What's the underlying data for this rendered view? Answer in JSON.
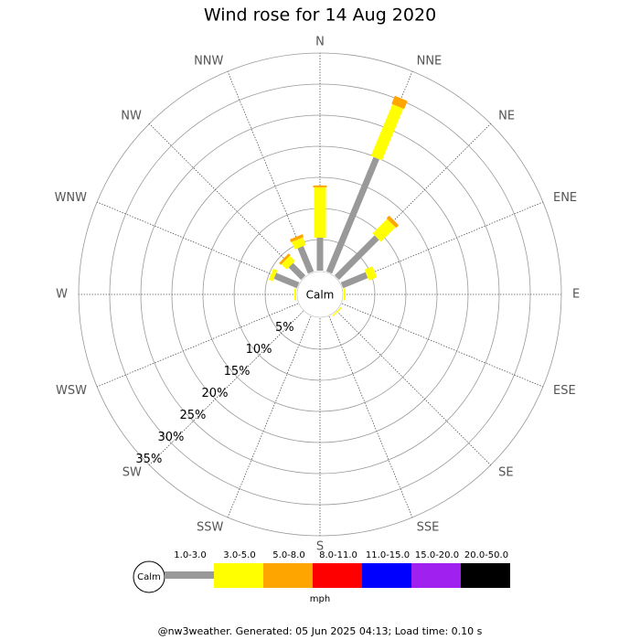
{
  "chart_data": {
    "type": "wind-rose",
    "title": "Wind rose for 14 Aug 2020",
    "calm_label": "Calm",
    "unit_label": "mph",
    "footer": "@nw3weather. Generated: 05 Jun 2025 04:13; Load time: 0.10 s",
    "categories": [
      "N",
      "NNE",
      "NE",
      "ENE",
      "E",
      "ESE",
      "SE",
      "SSE",
      "S",
      "SSW",
      "SW",
      "WSW",
      "W",
      "WNW",
      "NW",
      "NNW"
    ],
    "rlim": [
      0,
      35
    ],
    "rticks": [
      {
        "value": 5,
        "label": "5%"
      },
      {
        "value": 10,
        "label": "10%"
      },
      {
        "value": 15,
        "label": "15%"
      },
      {
        "value": 20,
        "label": "20%"
      },
      {
        "value": 25,
        "label": "25%"
      },
      {
        "value": 30,
        "label": "30%"
      },
      {
        "value": 35,
        "label": "35%"
      }
    ],
    "series": [
      {
        "name": "1.0-3.0",
        "color": "#999999",
        "values": [
          5.3,
          19.9,
          9.1,
          4.3,
          0,
          0,
          0,
          0,
          0,
          0,
          0,
          0,
          0,
          4.0,
          2.8,
          4.4
        ]
      },
      {
        "name": "3.0-5.0",
        "color": "#ffff00",
        "values": [
          8.1,
          9.0,
          3.3,
          1.4,
          0.3,
          0,
          0.2,
          0,
          0,
          0,
          0,
          0,
          0.3,
          0.7,
          1.2,
          1.3
        ]
      },
      {
        "name": "5.0-8.0",
        "color": "#ffa500",
        "values": [
          0.3,
          1.4,
          0.6,
          0,
          0,
          0,
          0,
          0,
          0,
          0,
          0,
          0,
          0,
          0,
          0.4,
          0.5
        ]
      },
      {
        "name": "8.0-11.0",
        "color": "#ff0000",
        "values": [
          0,
          0,
          0,
          0,
          0,
          0,
          0,
          0,
          0,
          0,
          0,
          0,
          0,
          0,
          0,
          0
        ]
      },
      {
        "name": "11.0-15.0",
        "color": "#0000ff",
        "values": [
          0,
          0,
          0,
          0,
          0,
          0,
          0,
          0,
          0,
          0,
          0,
          0,
          0,
          0,
          0,
          0
        ]
      },
      {
        "name": "15.0-20.0",
        "color": "#a020f0",
        "values": [
          0,
          0,
          0,
          0,
          0,
          0,
          0,
          0,
          0,
          0,
          0,
          0,
          0,
          0,
          0,
          0
        ]
      },
      {
        "name": "20.0-50.0",
        "color": "#000000",
        "values": [
          0,
          0,
          0,
          0,
          0,
          0,
          0,
          0,
          0,
          0,
          0,
          0,
          0,
          0,
          0,
          0
        ]
      }
    ]
  }
}
